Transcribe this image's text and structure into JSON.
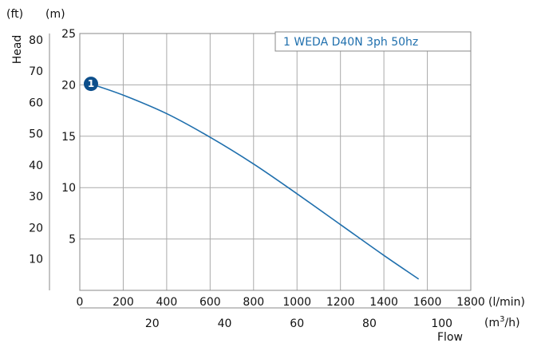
{
  "chart_data": {
    "type": "line",
    "title": "",
    "ylabel": "Head",
    "xlabel": "Flow",
    "units": {
      "head_ft": "(ft)",
      "head_m": "(m)",
      "flow_lmin": "(l/min)",
      "flow_m3h_prefix": "(m",
      "flow_m3h_exp": "3",
      "flow_m3h_suffix": "/h)"
    },
    "xlim_lmin": [
      0,
      1800
    ],
    "ylim_m": [
      0,
      25
    ],
    "grid": true,
    "legend": {
      "text": "1 WEDA D40N 3ph 50hz",
      "position": "top-right"
    },
    "colors": {
      "curve": "#1f6fad",
      "legend_text": "#1f6fad",
      "marker": "#0d4f8b",
      "grid": "#aaaaaa"
    },
    "x_ticks_lmin": [
      "0",
      "200",
      "400",
      "600",
      "800",
      "1000",
      "1200",
      "1400",
      "1600",
      "1800"
    ],
    "x_ticks_m3h": [
      "20",
      "40",
      "60",
      "80",
      "100"
    ],
    "y_ticks_m": [
      "5",
      "10",
      "15",
      "20",
      "25"
    ],
    "y_ticks_ft": [
      "10",
      "20",
      "30",
      "40",
      "50",
      "60",
      "70",
      "80"
    ],
    "series": [
      {
        "name": "1 WEDA D40N 3ph 50hz",
        "marker_label": "1",
        "x": [
          50,
          200,
          400,
          600,
          800,
          1000,
          1200,
          1400,
          1560
        ],
        "y": [
          20.1,
          19.0,
          17.2,
          14.9,
          12.3,
          9.4,
          6.4,
          3.4,
          1.1
        ]
      }
    ]
  }
}
